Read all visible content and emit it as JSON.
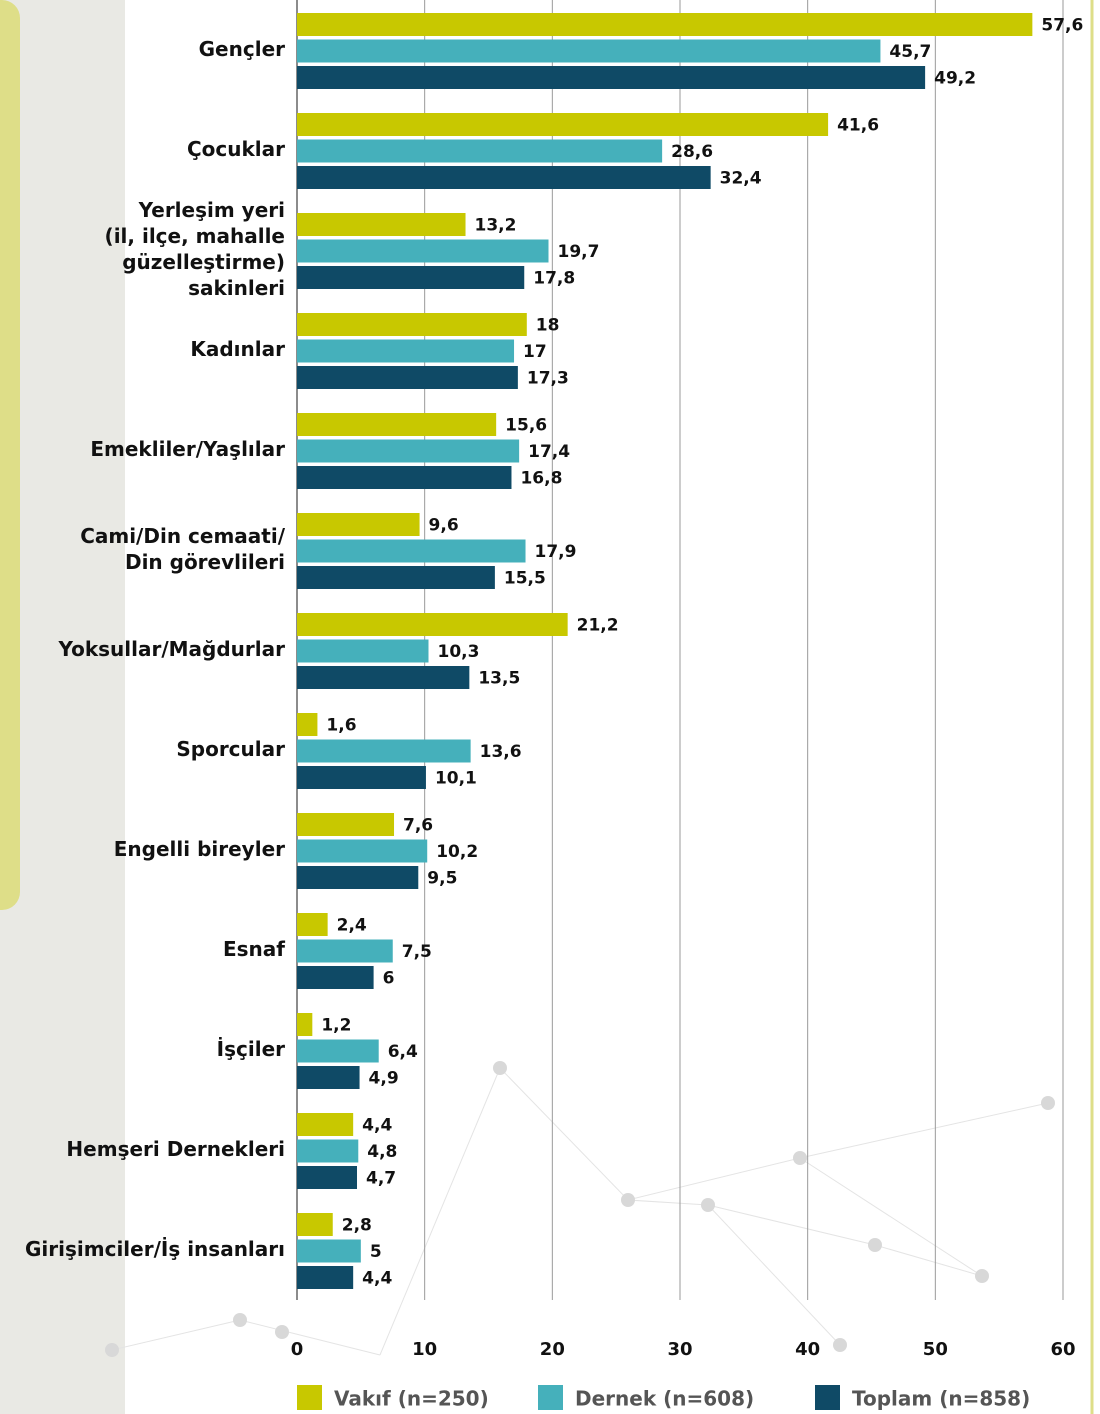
{
  "chart_data": {
    "type": "hbar",
    "categories": [
      "Gençler",
      "Çocuklar",
      "Yerleşim yeri\n(il, ilçe, mahalle\ngüzelleştirme)\nsakinleri",
      "Kadınlar",
      "Emekliler/Yaşlılar",
      "Cami/Din cemaati/\nDin görevlileri",
      "Yoksullar/Mağdurlar",
      "Sporcular",
      "Engelli bireyler",
      "Esnaf",
      "İşçiler",
      "Hemşeri Dernekleri",
      "Girişimciler/İş insanları"
    ],
    "series": [
      {
        "name": "Vakıf (n=250)",
        "color": "#c8c800",
        "values": [
          57.6,
          41.6,
          13.2,
          18,
          15.6,
          9.6,
          21.2,
          1.6,
          7.6,
          2.4,
          1.2,
          4.4,
          2.8
        ],
        "value_labels": [
          "57,6",
          "41,6",
          "13,2",
          "18",
          "15,6",
          "9,6",
          "21,2",
          "1,6",
          "7,6",
          "2,4",
          "1,2",
          "4,4",
          "2,8"
        ]
      },
      {
        "name": "Dernek (n=608)",
        "color": "#45b0bb",
        "values": [
          45.7,
          28.6,
          19.7,
          17,
          17.4,
          17.9,
          10.3,
          13.6,
          10.2,
          7.5,
          6.4,
          4.8,
          5
        ],
        "value_labels": [
          "45,7",
          "28,6",
          "19,7",
          "17",
          "17,4",
          "17,9",
          "10,3",
          "13,6",
          "10,2",
          "7,5",
          "6,4",
          "4,8",
          "5"
        ]
      },
      {
        "name": "Toplam (n=858)",
        "color": "#0f4a66",
        "values": [
          49.2,
          32.4,
          17.8,
          17.3,
          16.8,
          15.5,
          13.5,
          10.1,
          9.5,
          6,
          4.9,
          4.7,
          4.4
        ],
        "value_labels": [
          "49,2",
          "32,4",
          "17,8",
          "17,3",
          "16,8",
          "15,5",
          "13,5",
          "10,1",
          "9,5",
          "6",
          "4,9",
          "4,7",
          "4,4"
        ]
      }
    ],
    "xlim": [
      0,
      60
    ],
    "xticks": [
      0,
      10,
      20,
      30,
      40,
      50,
      60
    ],
    "grid": true,
    "legend": "bottom"
  }
}
